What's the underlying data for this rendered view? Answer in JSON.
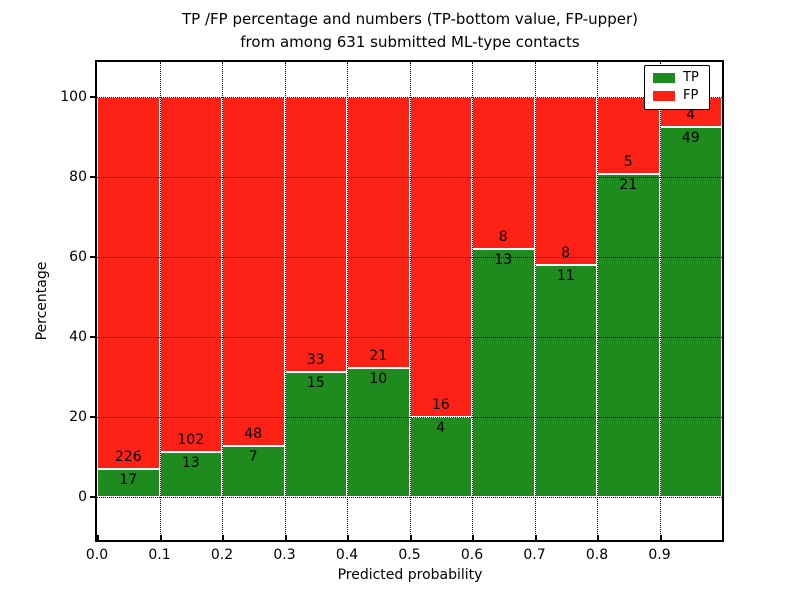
{
  "figure": {
    "title_line1": "TP /FP percentage and numbers (TP-bottom value, FP-upper)",
    "title_line2": "from among 631 submitted ML-type contacts"
  },
  "axes": {
    "xlabel": "Predicted probability",
    "ylabel": "Percentage",
    "x_tick_labels": [
      "0.0",
      "0.1",
      "0.2",
      "0.3",
      "0.4",
      "0.5",
      "0.6",
      "0.7",
      "0.8",
      "0.9"
    ],
    "y_tick_labels": [
      "0",
      "20",
      "40",
      "60",
      "80",
      "100"
    ],
    "y_tick_values": [
      0,
      20,
      40,
      60,
      80,
      100
    ]
  },
  "legend": {
    "items": [
      {
        "label": "TP",
        "color": "#1f8b1f"
      },
      {
        "label": "FP",
        "color": "#fe2116"
      }
    ]
  },
  "colors": {
    "tp_green": "#1f8b1f",
    "fp_red": "#fe2116",
    "grid": "#000000",
    "text": "#000000",
    "background": "#ffffff"
  },
  "chart_data": {
    "type": "bar",
    "stacked": true,
    "title": "TP /FP percentage and numbers (TP-bottom value, FP-upper) from among 631 submitted ML-type contacts",
    "xlabel": "Predicted probability",
    "ylabel": "Percentage",
    "total_contacts": 631,
    "categories": [
      "0.0-0.1",
      "0.1-0.2",
      "0.2-0.3",
      "0.3-0.4",
      "0.4-0.5",
      "0.5-0.6",
      "0.6-0.7",
      "0.7-0.8",
      "0.8-0.9",
      "0.9-1.0"
    ],
    "bin_left_edges": [
      0.0,
      0.1,
      0.2,
      0.3,
      0.4,
      0.5,
      0.6,
      0.7,
      0.8,
      0.9
    ],
    "series": [
      {
        "name": "TP",
        "counts": [
          17,
          13,
          7,
          15,
          10,
          4,
          13,
          11,
          21,
          49
        ],
        "color": "#1f8b1f"
      },
      {
        "name": "FP",
        "counts": [
          226,
          102,
          48,
          33,
          21,
          16,
          8,
          8,
          5,
          4
        ],
        "color": "#fe2116"
      }
    ],
    "tp_percent": [
      7.0,
      11.3,
      12.7,
      31.3,
      32.3,
      20.0,
      61.9,
      57.9,
      80.8,
      92.5
    ],
    "ylim": [
      -10.75,
      108.75
    ],
    "xlim": [
      0.0,
      1.0
    ],
    "grid": true,
    "grid_style": "dotted",
    "legend_position": "upper right"
  }
}
